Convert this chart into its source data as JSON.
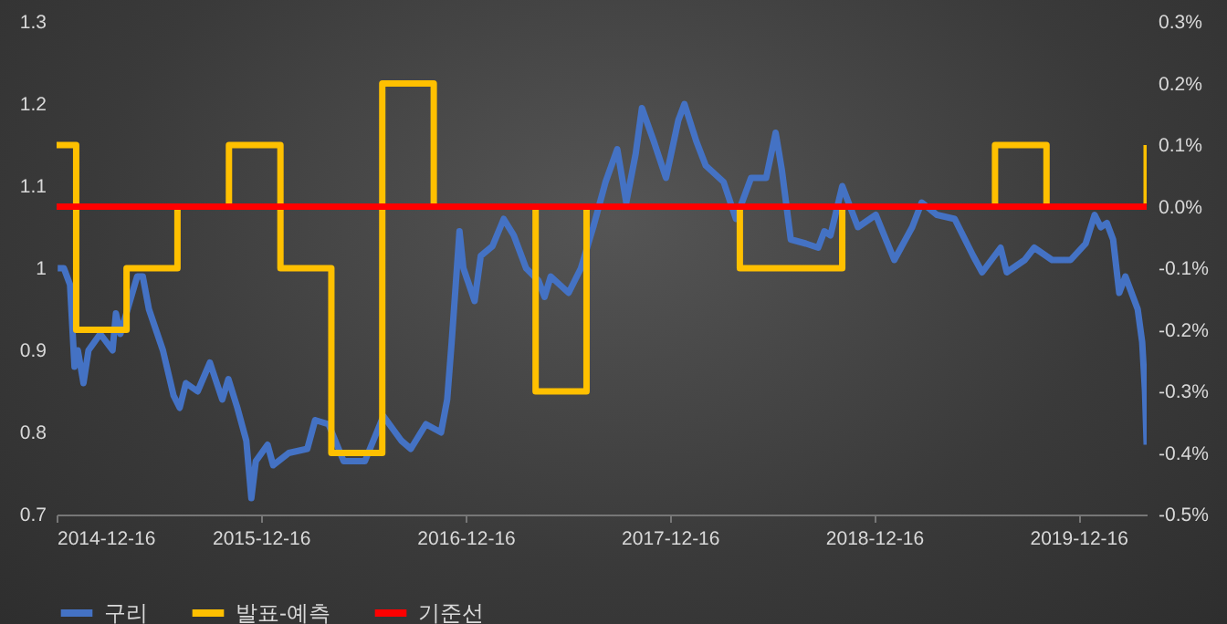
{
  "chart_data": {
    "type": "line",
    "xlim": [
      "2014-12-16",
      "2020-04-16"
    ],
    "xticks": [
      "2014-12-16",
      "2015-12-16",
      "2016-12-16",
      "2017-12-16",
      "2018-12-16",
      "2019-12-16"
    ],
    "ylim": [
      0.7,
      1.3
    ],
    "yticks": [
      0.7,
      0.8,
      0.9,
      1,
      1.1,
      1.2,
      1.3
    ],
    "y2lim": [
      -0.5,
      0.3
    ],
    "y2ticks": [
      {
        "value": -0.5,
        "label": "-0.5%"
      },
      {
        "value": -0.4,
        "label": "-0.4%"
      },
      {
        "value": -0.3,
        "label": "-0.3%"
      },
      {
        "value": -0.2,
        "label": "-0.2%"
      },
      {
        "value": -0.1,
        "label": "-0.1%"
      },
      {
        "value": 0,
        "label": "0.0%"
      },
      {
        "value": 0.1,
        "label": "0.1%"
      },
      {
        "value": 0.2,
        "label": "0.2%"
      },
      {
        "value": 0.3,
        "label": "0.3%"
      }
    ],
    "legend": "bottom",
    "series": [
      {
        "name": "구리",
        "color": "#4472c4",
        "x": [
          "2014-12-18",
          "2014-12-29",
          "2015-01-09",
          "2015-01-17",
          "2015-01-23",
          "2015-02-02",
          "2015-02-11",
          "2015-03-04",
          "2015-03-26",
          "2015-04-01",
          "2015-04-09",
          "2015-05-09",
          "2015-05-19",
          "2015-05-30",
          "2015-06-24",
          "2015-07-13",
          "2015-07-24",
          "2015-08-04",
          "2015-08-25",
          "2015-09-16",
          "2015-10-08",
          "2015-10-19",
          "2015-11-04",
          "2015-11-20",
          "2015-11-29",
          "2015-12-07",
          "2015-12-28",
          "2016-01-07",
          "2016-02-04",
          "2016-03-08",
          "2016-03-22",
          "2016-04-15",
          "2016-05-12",
          "2016-06-19",
          "2016-07-22",
          "2016-08-23",
          "2016-09-09",
          "2016-10-06",
          "2016-11-02",
          "2016-11-13",
          "2016-11-21",
          "2016-12-05",
          "2016-12-12",
          "2017-01-01",
          "2017-01-12",
          "2017-02-02",
          "2017-02-22",
          "2017-03-12",
          "2017-04-03",
          "2017-04-25",
          "2017-05-06",
          "2017-05-17",
          "2017-06-18",
          "2017-07-10",
          "2017-08-01",
          "2017-08-23",
          "2017-09-13",
          "2017-09-29",
          "2017-10-16",
          "2017-10-27",
          "2017-11-17",
          "2017-12-09",
          "2017-12-31",
          "2018-01-11",
          "2018-02-01",
          "2018-02-18",
          "2018-03-22",
          "2018-04-13",
          "2018-05-10",
          "2018-06-06",
          "2018-06-23",
          "2018-07-04",
          "2018-07-20",
          "2018-08-16",
          "2018-09-07",
          "2018-09-18",
          "2018-09-29",
          "2018-10-20",
          "2018-11-17",
          "2018-12-19",
          "2019-01-21",
          "2019-02-22",
          "2019-03-11",
          "2019-04-07",
          "2019-05-09",
          "2019-06-11",
          "2019-06-27",
          "2019-07-30",
          "2019-08-10",
          "2019-09-11",
          "2019-09-28",
          "2019-10-30",
          "2019-12-02",
          "2019-12-29",
          "2020-01-14",
          "2020-01-25",
          "2020-02-05",
          "2020-02-16",
          "2020-02-27",
          "2020-03-09",
          "2020-03-31",
          "2020-04-08",
          "2020-04-13",
          "2020-04-16"
        ],
        "values": [
          1.0,
          1.0,
          0.98,
          0.88,
          0.9,
          0.86,
          0.9,
          0.92,
          0.9,
          0.945,
          0.92,
          0.99,
          0.99,
          0.95,
          0.9,
          0.845,
          0.83,
          0.86,
          0.85,
          0.885,
          0.84,
          0.865,
          0.83,
          0.79,
          0.72,
          0.765,
          0.785,
          0.76,
          0.775,
          0.78,
          0.815,
          0.81,
          0.765,
          0.765,
          0.82,
          0.79,
          0.78,
          0.81,
          0.8,
          0.84,
          0.91,
          1.045,
          1.0,
          0.96,
          1.015,
          1.027,
          1.06,
          1.04,
          1.0,
          0.985,
          0.965,
          0.99,
          0.97,
          1.0,
          1.05,
          1.105,
          1.145,
          1.08,
          1.14,
          1.195,
          1.155,
          1.11,
          1.18,
          1.2,
          1.155,
          1.125,
          1.105,
          1.06,
          1.11,
          1.11,
          1.165,
          1.12,
          1.035,
          1.03,
          1.025,
          1.045,
          1.04,
          1.1,
          1.05,
          1.065,
          1.01,
          1.05,
          1.08,
          1.065,
          1.06,
          1.015,
          0.995,
          1.025,
          0.995,
          1.01,
          1.025,
          1.01,
          1.01,
          1.03,
          1.065,
          1.05,
          1.055,
          1.035,
          0.97,
          0.99,
          0.95,
          0.91,
          0.85,
          0.785
        ]
      },
      {
        "name": "발표-예측",
        "color": "#ffc000",
        "type": "step",
        "axis": "y2",
        "x": [
          "2014-12-16",
          "2015-01-20",
          "2015-04-20",
          "2015-07-20",
          "2015-10-20",
          "2016-01-20",
          "2016-04-20",
          "2016-07-20",
          "2016-10-20",
          "2017-04-20",
          "2017-07-20",
          "2018-04-20",
          "2018-10-20",
          "2019-07-20",
          "2019-10-20",
          "2020-04-16"
        ],
        "values": [
          0.1,
          -0.2,
          -0.1,
          0,
          0.1,
          -0.1,
          -0.4,
          0.2,
          0,
          -0.3,
          0,
          -0.1,
          0,
          0.1,
          0,
          0.1
        ]
      },
      {
        "name": "기준선",
        "color": "#ff0000",
        "axis": "y2",
        "x": [
          "2014-12-16",
          "2020-04-16"
        ],
        "values": [
          0,
          0
        ]
      }
    ]
  }
}
